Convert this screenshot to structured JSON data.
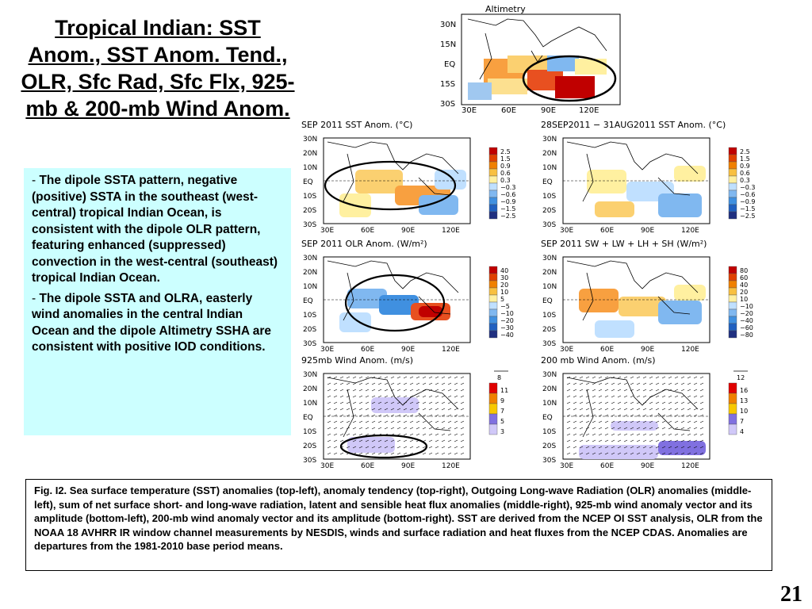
{
  "title": "Tropical Indian: SST Anom., SST Anom. Tend., OLR, Sfc Rad, Sfc Flx, 925-mb & 200-mb Wind Anom.",
  "bullets": [
    "The dipole SSTA pattern, negative (positive) SSTA in the southeast (west-central) tropical Indian Ocean, is consistent with the dipole OLR pattern, featuring enhanced (suppressed) convection in the west-central (southeast) tropical Indian Ocean.",
    "The dipole SSTA and OLRA, easterly wind anomalies in the central Indian Ocean and the dipole Altimetry SSHA are consistent with positive IOD conditions."
  ],
  "caption": "Fig. I2. Sea surface temperature (SST) anomalies (top-left), anomaly tendency (top-right), Outgoing Long-wave Radiation (OLR) anomalies (middle-left), sum of net surface short- and long-wave radiation, latent and sensible heat flux anomalies (middle-right), 925-mb wind anomaly vector and its amplitude (bottom-left), 200-mb wind anomaly vector and its amplitude  (bottom-right). SST are derived from the NCEP OI SST analysis, OLR from the NOAA 18 AVHRR IR window channel measurements by NESDIS, winds and surface radiation and heat fluxes from the NCEP CDAS. Anomalies are  departures from the 1981-2010 base period means.",
  "page_number": "21",
  "altimetry": {
    "title": "Altimetry",
    "lat_ticks": [
      "30N",
      "15N",
      "EQ",
      "15S",
      "30S"
    ],
    "lon_ticks": [
      "30E",
      "60E",
      "90E",
      "120E"
    ]
  },
  "panels": [
    {
      "title": "SEP 2011 SST Anom. (°C)",
      "legend": [
        "2.5",
        "1.5",
        "0.9",
        "0.6",
        "0.3",
        "−0.3",
        "−0.6",
        "−0.9",
        "−1.5",
        "−2.5"
      ]
    },
    {
      "title": "28SEP2011 − 31AUG2011 SST Anom. (°C)",
      "legend": [
        "2.5",
        "1.5",
        "0.9",
        "0.6",
        "0.3",
        "−0.3",
        "−0.6",
        "−0.9",
        "−1.5",
        "−2.5"
      ]
    },
    {
      "title": "SEP 2011 OLR Anom. (W/m²)",
      "legend": [
        "40",
        "30",
        "20",
        "10",
        "5",
        "−5",
        "−10",
        "−20",
        "−30",
        "−40"
      ]
    },
    {
      "title": "SEP 2011 SW + LW + LH + SH (W/m²)",
      "legend": [
        "80",
        "60",
        "40",
        "20",
        "10",
        "−10",
        "−20",
        "−40",
        "−60",
        "−80"
      ]
    },
    {
      "title": "925mb Wind Anom. (m/s)",
      "legend": [
        "11",
        "9",
        "7",
        "5",
        "3"
      ],
      "ref_vector": "8"
    },
    {
      "title": "200 mb Wind Anom. (m/s)",
      "legend": [
        "16",
        "13",
        "10",
        "7",
        "4"
      ],
      "ref_vector": "12"
    }
  ],
  "map_lat_ticks": [
    "30N",
    "20N",
    "10N",
    "EQ",
    "10S",
    "20S",
    "30S"
  ],
  "map_lon_ticks": [
    "30E",
    "60E",
    "90E",
    "120E"
  ],
  "colors": {
    "bullet_bg": "#ccffff",
    "legend_warm": [
      "#c00000",
      "#e04000",
      "#f08000",
      "#f8c040",
      "#fff0a0"
    ],
    "legend_cool": [
      "#c0e0ff",
      "#80b8f0",
      "#4090e0",
      "#2060c0",
      "#203080"
    ],
    "wind_legend": [
      "#e00000",
      "#f08000",
      "#f8c800",
      "#8070e0",
      "#d0c8f8"
    ]
  }
}
